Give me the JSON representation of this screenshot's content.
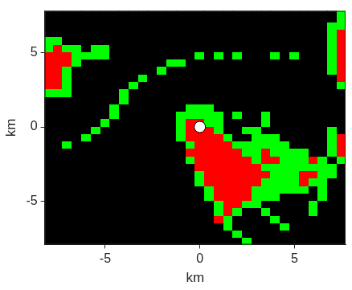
{
  "chart_data": {
    "type": "heatmap",
    "x_label": "km",
    "y_label": "km",
    "xlim": [
      -8.2,
      7.7
    ],
    "ylim": [
      -7.9,
      7.8
    ],
    "xticks": [
      -5,
      0,
      5
    ],
    "yticks": [
      -5,
      0,
      5
    ],
    "grid": false,
    "colors": [
      "#000000",
      "#00ff00",
      "#ff0000"
    ],
    "x": [
      -8,
      -7.5,
      -7,
      -6.5,
      -6,
      -5.5,
      -5,
      -4.5,
      -4,
      -3.5,
      -3,
      -2.5,
      -2,
      -1.5,
      -1,
      -0.5,
      0,
      0.5,
      1,
      1.5,
      2,
      2.5,
      3,
      3.5,
      4,
      4.5,
      5,
      5.5,
      6,
      6.5,
      7,
      7.5
    ],
    "y": [
      7.75,
      7.25,
      6.75,
      6.25,
      5.75,
      5.25,
      4.75,
      4.25,
      3.75,
      3.25,
      2.75,
      2.25,
      1.75,
      1.25,
      0.75,
      0.25,
      -0.25,
      -0.75,
      -1.25,
      -1.75,
      -2.25,
      -2.75,
      -3.25,
      -3.75,
      -4.25,
      -4.75,
      -5.25,
      -5.75,
      -6.25,
      -6.75,
      -7.25,
      -7.75
    ],
    "cells": [
      [
        0,
        0,
        0,
        0,
        0,
        0,
        0,
        0,
        0,
        0,
        0,
        0,
        0,
        0,
        0,
        0,
        0,
        0,
        0,
        0,
        0,
        0,
        0,
        0,
        0,
        0,
        0,
        0,
        0,
        0,
        0,
        1
      ],
      [
        0,
        0,
        0,
        0,
        0,
        0,
        0,
        0,
        0,
        0,
        0,
        0,
        0,
        0,
        0,
        0,
        0,
        0,
        0,
        0,
        0,
        0,
        0,
        0,
        0,
        0,
        0,
        0,
        0,
        0,
        0,
        1
      ],
      [
        0,
        0,
        0,
        0,
        0,
        0,
        0,
        0,
        0,
        0,
        0,
        0,
        0,
        0,
        0,
        0,
        0,
        0,
        0,
        0,
        0,
        0,
        0,
        0,
        0,
        0,
        0,
        0,
        0,
        0,
        1,
        1
      ],
      [
        0,
        0,
        0,
        0,
        0,
        0,
        0,
        0,
        0,
        0,
        0,
        0,
        0,
        0,
        0,
        0,
        0,
        0,
        0,
        0,
        0,
        0,
        0,
        0,
        0,
        0,
        0,
        0,
        0,
        0,
        1,
        2
      ],
      [
        1,
        1,
        0,
        0,
        0,
        0,
        0,
        0,
        0,
        0,
        0,
        0,
        0,
        0,
        0,
        0,
        0,
        0,
        0,
        0,
        0,
        0,
        0,
        0,
        0,
        0,
        0,
        0,
        0,
        0,
        1,
        2
      ],
      [
        1,
        2,
        1,
        1,
        0,
        1,
        1,
        0,
        0,
        0,
        0,
        0,
        0,
        0,
        0,
        0,
        0,
        0,
        0,
        0,
        0,
        0,
        0,
        0,
        0,
        0,
        0,
        0,
        0,
        0,
        1,
        2
      ],
      [
        2,
        2,
        2,
        1,
        1,
        1,
        1,
        0,
        0,
        0,
        0,
        0,
        0,
        0,
        0,
        0,
        1,
        0,
        1,
        0,
        1,
        0,
        0,
        0,
        1,
        0,
        1,
        0,
        0,
        0,
        1,
        2
      ],
      [
        2,
        2,
        2,
        1,
        0,
        0,
        0,
        0,
        0,
        0,
        0,
        0,
        0,
        1,
        1,
        0,
        0,
        0,
        0,
        0,
        0,
        0,
        0,
        0,
        0,
        0,
        0,
        0,
        0,
        0,
        1,
        2
      ],
      [
        2,
        2,
        1,
        0,
        0,
        0,
        0,
        0,
        0,
        0,
        0,
        0,
        1,
        0,
        0,
        0,
        0,
        0,
        0,
        0,
        0,
        0,
        0,
        0,
        0,
        0,
        0,
        0,
        0,
        0,
        1,
        2
      ],
      [
        2,
        2,
        1,
        0,
        0,
        0,
        0,
        0,
        0,
        0,
        1,
        0,
        0,
        0,
        0,
        0,
        0,
        0,
        0,
        0,
        0,
        0,
        0,
        0,
        0,
        0,
        0,
        0,
        0,
        0,
        0,
        2
      ],
      [
        2,
        2,
        1,
        0,
        0,
        0,
        0,
        0,
        0,
        1,
        0,
        0,
        0,
        0,
        0,
        0,
        0,
        0,
        0,
        0,
        0,
        0,
        0,
        0,
        0,
        0,
        0,
        0,
        0,
        0,
        0,
        1
      ],
      [
        1,
        1,
        1,
        0,
        0,
        0,
        0,
        0,
        1,
        0,
        0,
        0,
        0,
        0,
        0,
        0,
        0,
        0,
        0,
        0,
        0,
        0,
        0,
        0,
        0,
        0,
        0,
        0,
        0,
        0,
        0,
        0
      ],
      [
        0,
        0,
        0,
        0,
        0,
        0,
        0,
        0,
        1,
        0,
        0,
        0,
        0,
        0,
        0,
        0,
        0,
        0,
        0,
        0,
        0,
        0,
        0,
        0,
        0,
        0,
        0,
        0,
        0,
        0,
        0,
        0
      ],
      [
        0,
        0,
        0,
        0,
        0,
        0,
        0,
        1,
        0,
        0,
        0,
        0,
        0,
        0,
        0,
        1,
        1,
        1,
        0,
        0,
        0,
        0,
        0,
        0,
        0,
        0,
        0,
        0,
        0,
        0,
        0,
        0
      ],
      [
        0,
        0,
        0,
        0,
        0,
        0,
        0,
        1,
        0,
        0,
        0,
        0,
        0,
        0,
        1,
        1,
        1,
        1,
        1,
        0,
        1,
        0,
        0,
        1,
        0,
        0,
        0,
        0,
        0,
        0,
        0,
        0
      ],
      [
        0,
        0,
        0,
        0,
        0,
        0,
        1,
        0,
        0,
        0,
        0,
        0,
        0,
        0,
        1,
        2,
        2,
        1,
        1,
        0,
        0,
        0,
        0,
        1,
        0,
        0,
        0,
        0,
        0,
        0,
        0,
        0
      ],
      [
        0,
        0,
        0,
        0,
        0,
        1,
        0,
        0,
        0,
        0,
        0,
        0,
        0,
        0,
        1,
        2,
        2,
        2,
        1,
        0,
        0,
        1,
        1,
        0,
        0,
        0,
        0,
        0,
        0,
        0,
        1,
        0
      ],
      [
        0,
        0,
        0,
        0,
        1,
        0,
        0,
        0,
        0,
        0,
        0,
        0,
        0,
        0,
        1,
        2,
        2,
        2,
        2,
        1,
        0,
        0,
        1,
        1,
        1,
        0,
        0,
        0,
        0,
        0,
        1,
        2
      ],
      [
        0,
        0,
        1,
        0,
        0,
        0,
        0,
        0,
        0,
        0,
        0,
        0,
        0,
        0,
        0,
        1,
        2,
        2,
        2,
        2,
        1,
        1,
        1,
        1,
        1,
        1,
        0,
        0,
        0,
        0,
        1,
        2
      ],
      [
        0,
        0,
        0,
        0,
        0,
        0,
        0,
        0,
        0,
        0,
        0,
        0,
        0,
        0,
        0,
        2,
        2,
        2,
        2,
        2,
        2,
        1,
        1,
        2,
        1,
        1,
        1,
        1,
        0,
        0,
        1,
        2
      ],
      [
        0,
        0,
        0,
        0,
        0,
        0,
        0,
        0,
        0,
        0,
        0,
        0,
        0,
        0,
        0,
        1,
        2,
        2,
        2,
        2,
        2,
        2,
        1,
        2,
        2,
        1,
        1,
        1,
        2,
        1,
        0,
        1
      ],
      [
        0,
        0,
        0,
        0,
        0,
        0,
        0,
        0,
        0,
        0,
        0,
        0,
        0,
        0,
        0,
        0,
        2,
        2,
        2,
        2,
        2,
        2,
        2,
        1,
        1,
        1,
        1,
        1,
        1,
        1,
        1,
        0
      ],
      [
        0,
        0,
        0,
        0,
        0,
        0,
        0,
        0,
        0,
        0,
        0,
        0,
        0,
        0,
        0,
        0,
        1,
        2,
        2,
        2,
        2,
        2,
        2,
        2,
        1,
        1,
        1,
        2,
        2,
        1,
        1,
        0
      ],
      [
        0,
        0,
        0,
        0,
        0,
        0,
        0,
        0,
        0,
        0,
        0,
        0,
        0,
        0,
        0,
        0,
        1,
        2,
        2,
        2,
        2,
        2,
        2,
        1,
        1,
        1,
        1,
        2,
        1,
        1,
        0,
        0
      ],
      [
        0,
        0,
        0,
        0,
        0,
        0,
        0,
        0,
        0,
        0,
        0,
        0,
        0,
        0,
        0,
        0,
        0,
        1,
        2,
        2,
        2,
        2,
        1,
        1,
        1,
        1,
        1,
        1,
        0,
        1,
        0,
        0
      ],
      [
        0,
        0,
        0,
        0,
        0,
        0,
        0,
        0,
        0,
        0,
        0,
        0,
        0,
        0,
        0,
        0,
        0,
        1,
        2,
        2,
        2,
        2,
        1,
        1,
        1,
        0,
        0,
        0,
        0,
        1,
        0,
        0
      ],
      [
        0,
        0,
        0,
        0,
        0,
        0,
        0,
        0,
        0,
        0,
        0,
        0,
        0,
        0,
        0,
        0,
        0,
        0,
        1,
        2,
        2,
        1,
        1,
        0,
        0,
        0,
        0,
        0,
        1,
        0,
        0,
        0
      ],
      [
        0,
        0,
        0,
        0,
        0,
        0,
        0,
        0,
        0,
        0,
        0,
        0,
        0,
        0,
        0,
        0,
        0,
        0,
        1,
        2,
        1,
        0,
        0,
        1,
        0,
        0,
        0,
        0,
        1,
        0,
        0,
        0
      ],
      [
        0,
        0,
        0,
        0,
        0,
        0,
        0,
        0,
        0,
        0,
        0,
        0,
        0,
        0,
        0,
        0,
        0,
        0,
        2,
        1,
        0,
        0,
        0,
        0,
        1,
        0,
        0,
        0,
        0,
        0,
        0,
        0
      ],
      [
        0,
        0,
        0,
        0,
        0,
        0,
        0,
        0,
        0,
        0,
        0,
        0,
        0,
        0,
        0,
        0,
        0,
        0,
        0,
        1,
        0,
        0,
        0,
        0,
        0,
        1,
        0,
        0,
        0,
        0,
        0,
        0
      ],
      [
        0,
        0,
        0,
        0,
        0,
        0,
        0,
        0,
        0,
        0,
        0,
        0,
        0,
        0,
        0,
        0,
        0,
        0,
        0,
        0,
        1,
        0,
        0,
        0,
        0,
        0,
        0,
        0,
        0,
        0,
        0,
        0
      ],
      [
        0,
        0,
        0,
        0,
        0,
        0,
        0,
        0,
        0,
        0,
        0,
        0,
        0,
        0,
        0,
        0,
        0,
        0,
        0,
        0,
        0,
        1,
        0,
        0,
        0,
        0,
        0,
        0,
        0,
        0,
        0,
        0
      ]
    ],
    "points": {
      "x": [
        0
      ],
      "y": [
        0
      ],
      "color": "#ffffff",
      "marker": "circle"
    }
  }
}
